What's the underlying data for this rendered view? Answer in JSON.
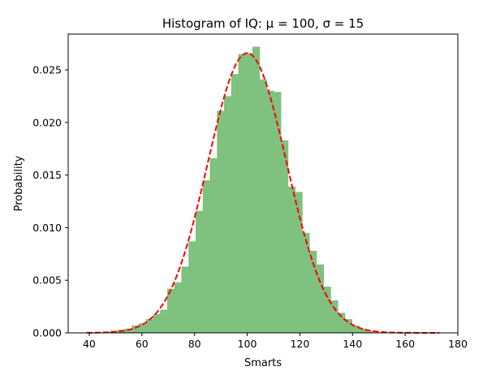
{
  "chart_data": {
    "type": "bar",
    "title": "Histogram of IQ: μ = 100, σ = 15",
    "xlabel": "Smarts",
    "ylabel": "Probability",
    "xlim": [
      32,
      180
    ],
    "ylim": [
      0,
      0.0284
    ],
    "xticks": [
      40,
      60,
      80,
      100,
      120,
      140,
      160,
      180
    ],
    "yticks": [
      0.0,
      0.005,
      0.01,
      0.015,
      0.02,
      0.025
    ],
    "ytick_labels": [
      "0.000",
      "0.005",
      "0.010",
      "0.015",
      "0.020",
      "0.025"
    ],
    "grid": false,
    "legend": "none",
    "bin_edges": [
      45.3,
      48.0,
      50.7,
      53.4,
      56.1,
      58.8,
      61.5,
      64.2,
      66.9,
      69.6,
      72.3,
      75.0,
      77.7,
      80.4,
      83.1,
      85.8,
      88.5,
      91.2,
      93.9,
      96.6,
      99.3,
      102.0,
      104.7,
      107.4,
      110.1,
      112.8,
      115.5,
      118.2,
      120.9,
      123.6,
      126.3,
      129.0,
      131.7,
      134.4,
      137.1,
      139.8,
      142.5,
      145.2,
      147.9
    ],
    "values": [
      0.0001,
      0.0002,
      0.0003,
      0.0004,
      0.0007,
      0.0009,
      0.0013,
      0.0018,
      0.0022,
      0.0042,
      0.0048,
      0.0063,
      0.0087,
      0.0116,
      0.0145,
      0.0166,
      0.0211,
      0.0225,
      0.0246,
      0.0265,
      0.0266,
      0.0272,
      0.0241,
      0.023,
      0.0229,
      0.0183,
      0.0139,
      0.0134,
      0.0095,
      0.0078,
      0.0065,
      0.0044,
      0.0031,
      0.0019,
      0.0013,
      0.0007,
      0.0004,
      0.0002
    ],
    "pdf_curve": {
      "mu": 100,
      "sigma": 15,
      "x_range": [
        39,
        173
      ],
      "style": "dashed",
      "color": "#ff0000"
    },
    "bar_color": "#7fc17f"
  }
}
